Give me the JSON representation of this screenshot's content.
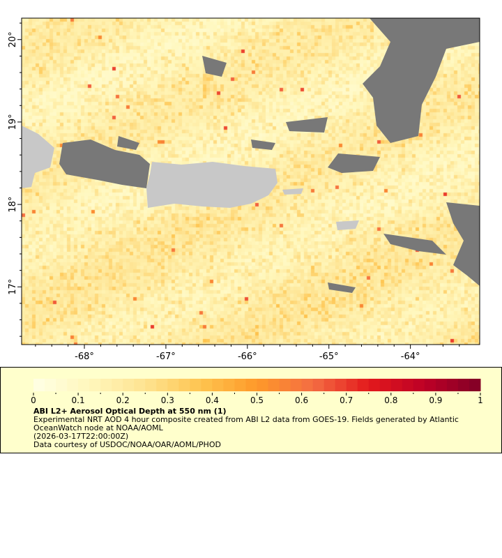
{
  "map": {
    "lat_labels": [
      "20°",
      "19°",
      "18°",
      "17°"
    ],
    "lat_values": [
      20,
      19,
      18,
      17
    ],
    "lon_labels": [
      "-68°",
      "-67°",
      "-66°",
      "-65°",
      "-64°"
    ],
    "lon_values": [
      -68,
      -67,
      -66,
      -65,
      -64
    ],
    "lon_range": [
      -68.77,
      -63.15
    ],
    "lat_range": [
      16.3,
      20.26
    ],
    "colors": {
      "land": "#c8c8c8",
      "no_data": "#787878",
      "low": "#fff3c0",
      "mid": "#fdbb60"
    }
  },
  "legend": {
    "scale_min": 0,
    "scale_max": 1,
    "tick_labels": [
      "0",
      "0.1",
      "0.2",
      "0.3",
      "0.4",
      "0.5",
      "0.6",
      "0.7",
      "0.8",
      "0.9",
      "1"
    ],
    "title": "ABI L2+ Aerosol Optical Depth at 550 nm (1)",
    "line1": "Experimental NRT AOD 4 hour composite created from ABI L2 data from GOES-19. Fields generated by Atlantic",
    "line2": "OceanWatch node at NOAA/AOML",
    "line3": "(2026-03-17T22:00:00Z)",
    "line4": "Data courtesy of USDOC/NOAA/OAR/AOML/PHOD",
    "palette": [
      "#ffffe5",
      "#fff7bc",
      "#fee391",
      "#fec44f",
      "#fe9929",
      "#f46d43",
      "#e31a1c",
      "#bd0026",
      "#800026"
    ]
  }
}
